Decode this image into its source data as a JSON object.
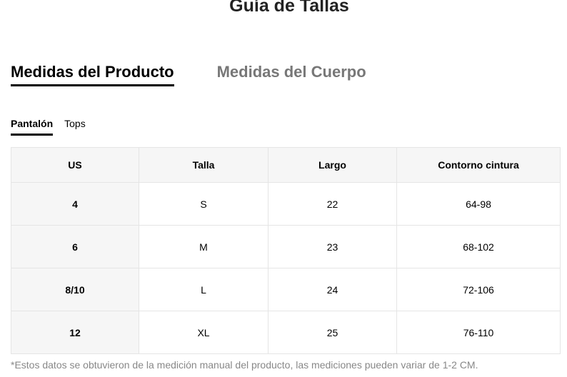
{
  "title": "Guía de Tallas",
  "tabs": [
    {
      "label": "Medidas del Producto",
      "active": true
    },
    {
      "label": "Medidas del Cuerpo",
      "active": false
    }
  ],
  "subtabs": [
    {
      "label": "Pantalón",
      "active": true
    },
    {
      "label": "Tops",
      "active": false
    }
  ],
  "table": {
    "headers": [
      "US",
      "Talla",
      "Largo",
      "Contorno cintura"
    ],
    "rows": [
      [
        "4",
        "S",
        "22",
        "64-98"
      ],
      [
        "6",
        "M",
        "23",
        "68-102"
      ],
      [
        "8/10",
        "L",
        "24",
        "72-106"
      ],
      [
        "12",
        "XL",
        "25",
        "76-110"
      ]
    ]
  },
  "note": "*Estos datos se obtuvieron de la medición manual del producto, las mediciones pueden variar de 1-2 CM."
}
